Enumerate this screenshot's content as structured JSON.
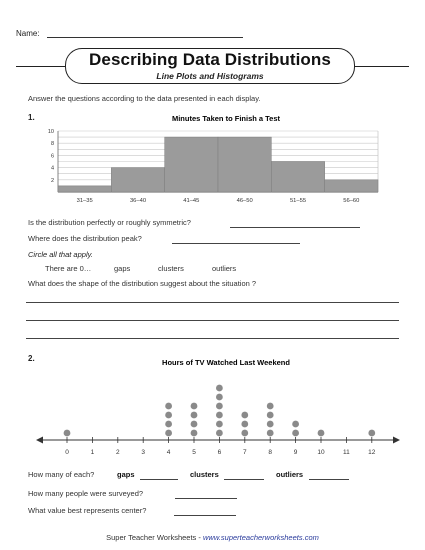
{
  "header": {
    "name_label": "Name:",
    "title": "Describing Data Distributions",
    "subtitle": "Line Plots and Histograms"
  },
  "instructions": "Answer the questions according to the data presented in each display.",
  "question1": {
    "number": "1.",
    "q_symmetric": "Is the distribution perfectly or roughly symmetric?",
    "q_peak": "Where does the distribution peak?",
    "circle_prompt": "Circle all that apply.",
    "options_intro": "There are 0…",
    "options": [
      "gaps",
      "clusters",
      "outliers"
    ],
    "q_shape": "What does the shape of the distribution suggest about the situation ?"
  },
  "question2": {
    "number": "2.",
    "q_how_many": "How many of each?",
    "labels": [
      "gaps",
      "clusters",
      "outliers"
    ],
    "q_surveyed": "How many people were surveyed?",
    "q_center": "What value best represents center?"
  },
  "footer": {
    "brand": "Super Teacher Worksheets",
    "separator": "-",
    "url": "www.superteacherworksheets.com"
  },
  "chart_data": [
    {
      "type": "bar",
      "title": "Minutes Taken to Finish a Test",
      "categories": [
        "31–35",
        "36–40",
        "41–45",
        "46–50",
        "51–55",
        "56–60"
      ],
      "values": [
        1,
        4,
        9,
        9,
        5,
        2
      ],
      "ylim": [
        0,
        10
      ],
      "yticks": [
        2,
        4,
        6,
        8,
        10
      ],
      "grid": true,
      "bar_color": "#9b9b9b"
    },
    {
      "type": "scatter",
      "subtype": "dot-plot",
      "title": "Hours of TV Watched Last Weekend",
      "x": [
        0,
        1,
        2,
        3,
        4,
        5,
        6,
        7,
        8,
        9,
        10,
        11,
        12
      ],
      "counts": [
        1,
        0,
        0,
        0,
        4,
        4,
        6,
        3,
        4,
        2,
        1,
        0,
        1
      ],
      "dot_color": "#8a8a8a"
    }
  ]
}
